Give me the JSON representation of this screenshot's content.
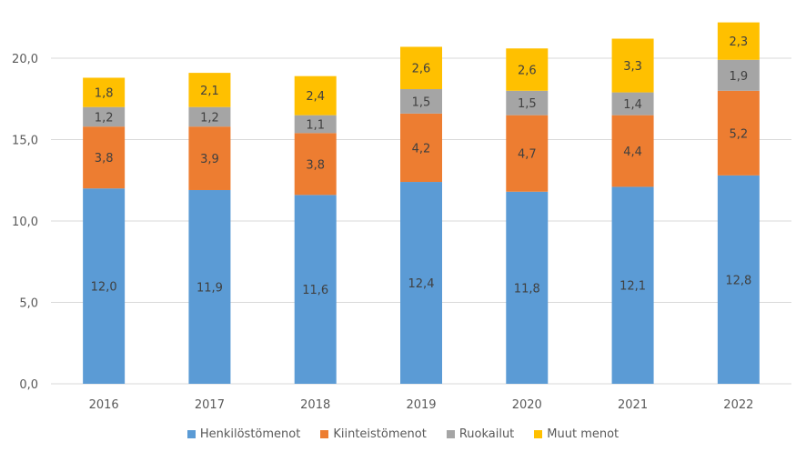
{
  "chart_data": {
    "type": "bar",
    "stacked": true,
    "title": "",
    "xlabel": "",
    "ylabel": "",
    "ylim": [
      0,
      20
    ],
    "yticks": [
      "0,0",
      "5,0",
      "10,0",
      "15,0",
      "20,0"
    ],
    "ytick_values": [
      0,
      5,
      10,
      15,
      20
    ],
    "grid": true,
    "legend_position": "bottom",
    "categories": [
      "2016",
      "2017",
      "2018",
      "2019",
      "2020",
      "2021",
      "2022"
    ],
    "series": [
      {
        "name": "Henkilöstömenot",
        "color": "#5b9bd5",
        "values": [
          12.0,
          11.9,
          11.6,
          12.4,
          11.8,
          12.1,
          12.8
        ],
        "labels": [
          "12,0",
          "11,9",
          "11,6",
          "12,4",
          "11,8",
          "12,1",
          "12,8"
        ]
      },
      {
        "name": "Kiinteistömenot",
        "color": "#ed7d31",
        "values": [
          3.8,
          3.9,
          3.8,
          4.2,
          4.7,
          4.4,
          5.2
        ],
        "labels": [
          "3,8",
          "3,9",
          "3,8",
          "4,2",
          "4,7",
          "4,4",
          "5,2"
        ]
      },
      {
        "name": "Ruokailut",
        "color": "#a5a5a5",
        "values": [
          1.2,
          1.2,
          1.1,
          1.5,
          1.5,
          1.4,
          1.9
        ],
        "labels": [
          "1,2",
          "1,2",
          "1,1",
          "1,5",
          "1,5",
          "1,4",
          "1,9"
        ]
      },
      {
        "name": "Muut menot",
        "color": "#ffc000",
        "values": [
          1.8,
          2.1,
          2.4,
          2.6,
          2.6,
          3.3,
          2.3
        ],
        "labels": [
          "1,8",
          "2,1",
          "2,4",
          "2,6",
          "2,6",
          "3,3",
          "2,3"
        ]
      }
    ]
  }
}
